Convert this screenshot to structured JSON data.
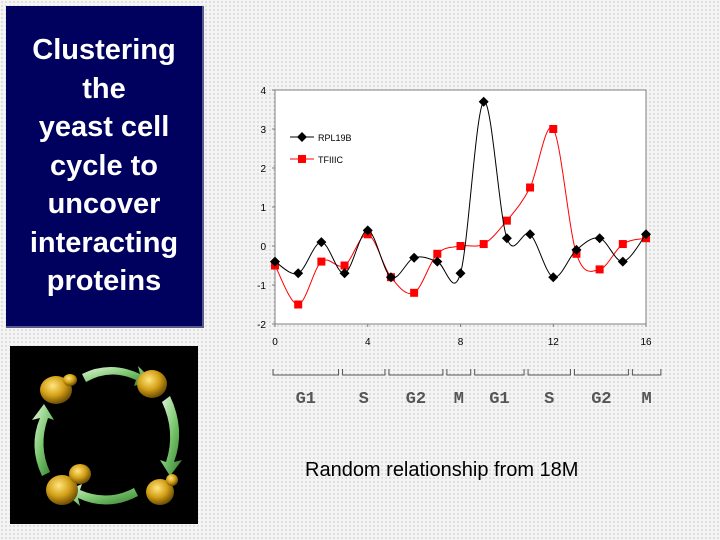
{
  "slide": {
    "title_lines": [
      "Clustering",
      "the",
      "yeast cell",
      "cycle to",
      "uncover",
      "interacting",
      "proteins"
    ],
    "caption": "Random relationship from 18M"
  },
  "colors": {
    "title_bg": "#00005e",
    "series_RPL19B": "#000000",
    "series_TFIIIC": "#ff0000",
    "cell": "#d4a017",
    "arrow": "#7cc870"
  },
  "cell_cycle_image": {
    "icon": "yeast-cell-cycle-diagram"
  },
  "chart_data": {
    "type": "line",
    "title": "",
    "xlabel": "",
    "ylabel": "",
    "xlim": [
      0,
      16
    ],
    "ylim": [
      -2,
      4
    ],
    "xticks": [
      0,
      4,
      8,
      12,
      16
    ],
    "yticks": [
      -2,
      -1,
      0,
      1,
      2,
      3,
      4
    ],
    "x": [
      0,
      1,
      2,
      3,
      4,
      5,
      6,
      7,
      8,
      9,
      10,
      11,
      12,
      13,
      14,
      15,
      16
    ],
    "series": [
      {
        "name": "RPL19B",
        "marker": "diamond",
        "color": "#000000",
        "values": [
          -0.4,
          -0.7,
          0.1,
          -0.7,
          0.4,
          -0.8,
          -0.3,
          -0.4,
          -0.7,
          3.7,
          0.2,
          0.3,
          -0.8,
          -0.1,
          0.2,
          -0.4,
          0.3
        ]
      },
      {
        "name": "TFIIIC",
        "marker": "square",
        "color": "#ff0000",
        "values": [
          -0.5,
          -1.5,
          -0.4,
          -0.5,
          0.3,
          -0.8,
          -1.2,
          -0.2,
          0.0,
          0.05,
          0.65,
          1.5,
          3.0,
          -0.2,
          -0.6,
          0.05,
          0.2
        ]
      }
    ],
    "legend_position": "top-left",
    "grid": false,
    "phases": [
      {
        "label": "G1",
        "start": 0,
        "end": 3
      },
      {
        "label": "S",
        "start": 3,
        "end": 5
      },
      {
        "label": "G2",
        "start": 5,
        "end": 7.5
      },
      {
        "label": "M",
        "start": 7.5,
        "end": 8.7
      },
      {
        "label": "G1",
        "start": 8.7,
        "end": 11
      },
      {
        "label": "S",
        "start": 11,
        "end": 13
      },
      {
        "label": "G2",
        "start": 13,
        "end": 15.5
      },
      {
        "label": "M",
        "start": 15.5,
        "end": 16.9
      }
    ]
  }
}
